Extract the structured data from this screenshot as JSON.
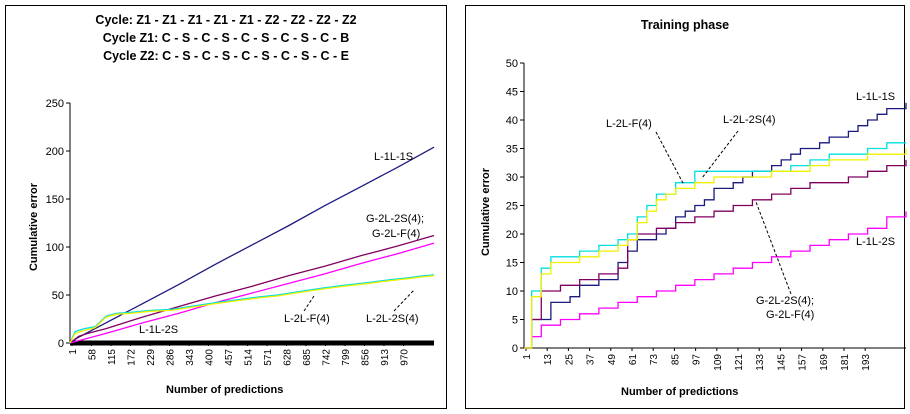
{
  "chart_data": [
    {
      "type": "line",
      "title_lines": [
        "Cycle: Z1 - Z1 - Z1 - Z1 - Z1 - Z2 - Z2 - Z2 - Z2",
        "Cycle Z1: C - S - C - S - C - S - C - S - C - B",
        "Cycle Z2: C - S - C - S - C - S - C - S - C - E"
      ],
      "xlabel": "Number of predictions",
      "ylabel": "Cumulative error",
      "xlim": [
        1,
        1000
      ],
      "ylim": [
        0,
        250
      ],
      "y_ticks": [
        0,
        50,
        100,
        150,
        200,
        250
      ],
      "x_tick_labels": [
        "1",
        "58",
        "115",
        "172",
        "229",
        "286",
        "343",
        "400",
        "457",
        "514",
        "571",
        "628",
        "685",
        "742",
        "799",
        "856",
        "913",
        "970"
      ],
      "grid": false,
      "colors": {
        "L-1L-1S": "#1a1a80",
        "G-2L-2S(4); G-2L-F(4)": "#800060",
        "L-1L-2S": "#ff00ff",
        "L-2L-F(4)": "#00e0e0",
        "L-2L-2S(4)": "#f0f000"
      },
      "series": [
        {
          "name": "L-1L-1S",
          "x": [
            1,
            20,
            40,
            100,
            200,
            300,
            400,
            500,
            600,
            700,
            800,
            900,
            1000
          ],
          "y": [
            0,
            5,
            9,
            21,
            41,
            61,
            82,
            102,
            122,
            143,
            163,
            183,
            204
          ]
        },
        {
          "name": "G-2L-2S(4); G-2L-F(4)",
          "x": [
            1,
            25,
            50,
            100,
            200,
            300,
            400,
            500,
            600,
            700,
            800,
            900,
            1000
          ],
          "y": [
            0,
            7,
            10,
            15,
            27,
            38,
            49,
            59,
            70,
            80,
            91,
            101,
            112
          ]
        },
        {
          "name": "L-1L-2S",
          "x": [
            1,
            100,
            200,
            300,
            400,
            500,
            600,
            700,
            800,
            900,
            1000
          ],
          "y": [
            0,
            10,
            21,
            31,
            42,
            52,
            62,
            72,
            83,
            93,
            104
          ]
        },
        {
          "name": "L-2L-F(4)",
          "x": [
            1,
            15,
            40,
            70,
            100,
            130,
            170,
            220,
            280,
            330,
            400,
            460,
            520,
            570,
            620,
            690,
            750,
            820,
            880,
            930,
            970,
            1000
          ],
          "y": [
            0,
            12,
            15,
            17,
            28,
            31,
            32,
            34,
            35,
            38,
            42,
            45,
            48,
            50,
            53,
            57,
            60,
            63,
            66,
            68,
            70,
            71
          ]
        },
        {
          "name": "L-2L-2S(4)",
          "x": [
            1,
            15,
            40,
            70,
            100,
            130,
            170,
            220,
            280,
            330,
            400,
            460,
            520,
            570,
            620,
            690,
            750,
            820,
            880,
            930,
            970,
            1000
          ],
          "y": [
            0,
            10,
            13,
            16,
            27,
            30,
            31,
            33,
            34,
            37,
            41,
            44,
            47,
            49,
            52,
            56,
            59,
            62,
            65,
            67,
            69,
            70
          ]
        }
      ],
      "annotations": [
        "L-1L-1S",
        "G-2L-2S(4);",
        "G-2L-F(4)",
        "L-1L-2S",
        "L-2L-F(4)",
        "L-2L-2S(4)"
      ]
    },
    {
      "type": "line",
      "title": "Training phase",
      "xlabel": "Number of predictions",
      "ylabel": "Cumulative error",
      "xlim": [
        1,
        200
      ],
      "ylim": [
        0,
        50
      ],
      "y_ticks": [
        0,
        5,
        10,
        15,
        20,
        25,
        30,
        35,
        40,
        45,
        50
      ],
      "x_tick_labels": [
        "1",
        "13",
        "25",
        "37",
        "49",
        "61",
        "73",
        "85",
        "97",
        "109",
        "121",
        "133",
        "145",
        "157",
        "169",
        "181",
        "193"
      ],
      "grid": false,
      "colors": {
        "L-1L-1S": "#1a1a80",
        "G-2L-2S(4); G-2L-F(4)": "#800060",
        "L-1L-2S": "#ff00ff",
        "L-2L-F(4)": "#00e0e0",
        "L-2L-2S(4)": "#f0f000"
      },
      "series": [
        {
          "name": "L-1L-1S",
          "x": [
            1,
            5,
            10,
            15,
            20,
            25,
            30,
            35,
            40,
            45,
            50,
            55,
            60,
            65,
            70,
            75,
            80,
            85,
            90,
            95,
            100,
            105,
            110,
            115,
            120,
            125,
            130,
            135,
            140,
            145,
            150,
            155,
            160,
            165,
            170,
            175,
            180,
            185,
            190,
            195,
            200
          ],
          "y": [
            0,
            5,
            5,
            8,
            8,
            9,
            11,
            11,
            12,
            12,
            15,
            17,
            19,
            19,
            20,
            21,
            23,
            24,
            25,
            26,
            28,
            28,
            29,
            30,
            31,
            31,
            32,
            33,
            34,
            35,
            35,
            36,
            37,
            37,
            38,
            39,
            40,
            41,
            42,
            42,
            43
          ]
        },
        {
          "name": "G-2L-2S(4); G-2L-F(4)",
          "x": [
            1,
            5,
            10,
            15,
            20,
            30,
            40,
            50,
            55,
            60,
            70,
            80,
            90,
            100,
            110,
            120,
            130,
            140,
            150,
            160,
            170,
            180,
            190,
            200
          ],
          "y": [
            0,
            5,
            10,
            10,
            11,
            12,
            13,
            14,
            19,
            20,
            21,
            22,
            23,
            24,
            25,
            26,
            27,
            28,
            29,
            29,
            30,
            31,
            32,
            33
          ]
        },
        {
          "name": "L-1L-2S",
          "x": [
            1,
            5,
            10,
            20,
            30,
            40,
            50,
            60,
            70,
            80,
            90,
            100,
            110,
            120,
            130,
            140,
            150,
            160,
            170,
            180,
            190,
            200
          ],
          "y": [
            0,
            2,
            4,
            5,
            6,
            7,
            8,
            9,
            10,
            11,
            12,
            13,
            14,
            15,
            16,
            17,
            18,
            19,
            20,
            21,
            23,
            24
          ]
        },
        {
          "name": "L-2L-F(4)",
          "x": [
            1,
            5,
            10,
            15,
            20,
            30,
            40,
            50,
            55,
            60,
            65,
            70,
            75,
            80,
            85,
            90,
            100,
            110,
            120,
            130,
            140,
            150,
            160,
            170,
            180,
            190,
            200
          ],
          "y": [
            0,
            10,
            14,
            16,
            16,
            17,
            18,
            19,
            20,
            23,
            25,
            27,
            27,
            29,
            29,
            31,
            31,
            31,
            31,
            31,
            32,
            33,
            34,
            34,
            35,
            36,
            36
          ]
        },
        {
          "name": "L-2L-2S(4)",
          "x": [
            1,
            5,
            10,
            15,
            20,
            30,
            40,
            50,
            55,
            60,
            65,
            70,
            75,
            80,
            85,
            90,
            100,
            110,
            120,
            130,
            140,
            150,
            160,
            170,
            180,
            190,
            200
          ],
          "y": [
            0,
            9,
            13,
            15,
            15,
            16,
            17,
            18,
            19,
            22,
            24,
            26,
            27,
            28,
            28,
            29,
            30,
            30,
            30,
            31,
            31,
            32,
            33,
            33,
            34,
            34,
            35
          ]
        }
      ],
      "annotations": [
        "L-1L-1S",
        "L-2L-F(4)",
        "L-2L-2S(4)",
        "L-1L-2S",
        "G-2L-2S(4);",
        "G-2L-F(4)"
      ]
    }
  ]
}
